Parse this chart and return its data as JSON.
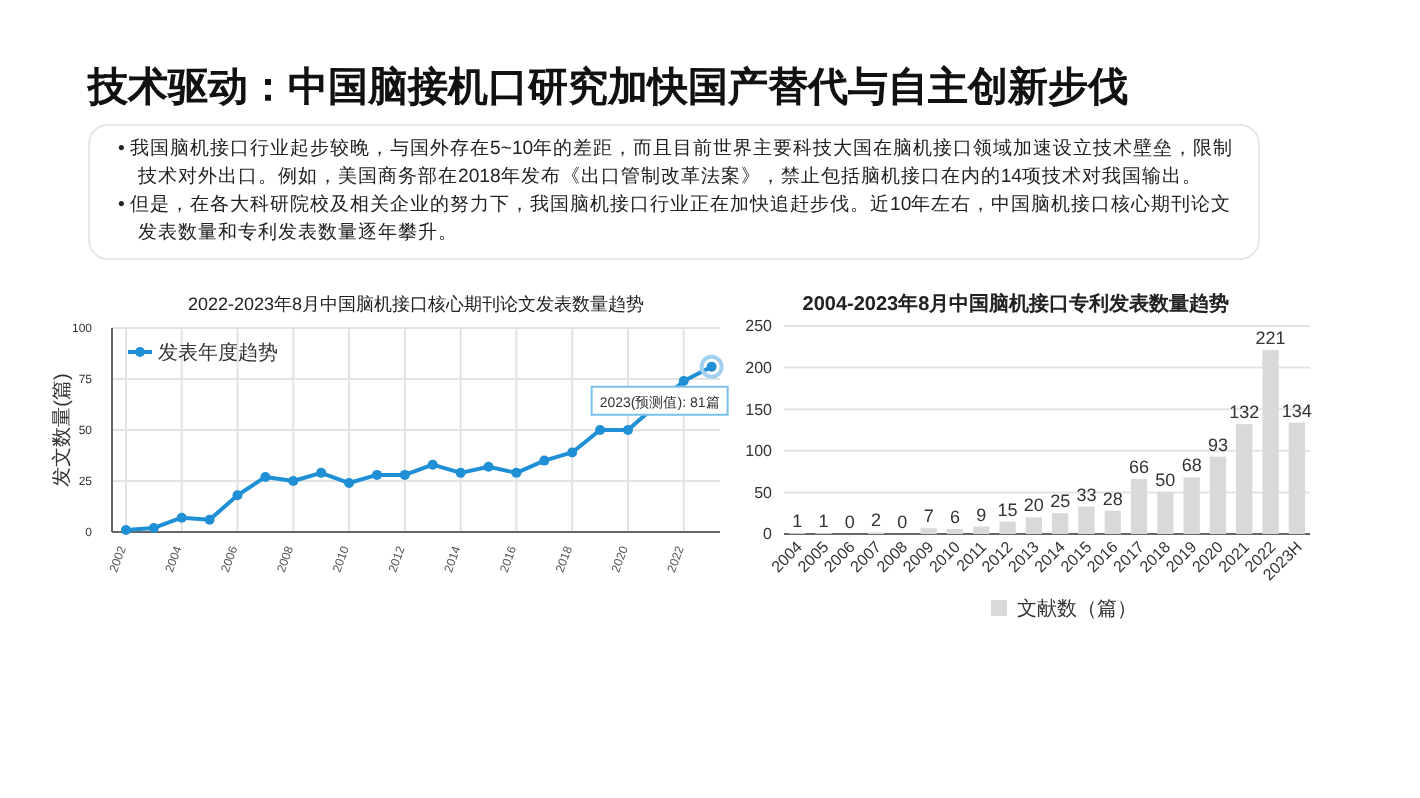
{
  "chart_data": [
    {
      "type": "other",
      "title": "技术驱动：中国脑接机口研究加快国产替代与自主创新步伐",
      "annotations": [
        "• 我国脑机接口行业起步较晚，与国外存在5~10年的差距，而且目前世界主要科技大国在脑机接口领域加速设立技术壁垒，限制技术对外出口。例如，美国商务部在2018年发布《出口管制改革法案》，禁止包括脑机接口在内的14项技术对我国输出。",
        "• 但是，在各大科研院校及相关企业的努力下，我国脑机接口行业正在加快追赶步伐。近10年左右，中国脑机接口核心期刊论文发表数量和专利发表数量逐年攀升。"
      ]
    },
    {
      "type": "line",
      "title": "2022-2023年8月中国脑机接口核心期刊论文发表数量趋势",
      "ylabel": "发文数量(篇)",
      "x": [
        2002,
        2003,
        2004,
        2005,
        2006,
        2007,
        2008,
        2009,
        2010,
        2011,
        2012,
        2013,
        2014,
        2015,
        2016,
        2017,
        2018,
        2019,
        2020,
        2022,
        2023
      ],
      "xlim": [
        2001.5,
        2023.3
      ],
      "xticks": [
        2002,
        2004,
        2006,
        2008,
        2010,
        2012,
        2014,
        2016,
        2018,
        2020,
        2022
      ],
      "ylim": [
        0,
        100
      ],
      "yticks": [
        0,
        25,
        50,
        75,
        100
      ],
      "grid": true,
      "legend": "top left",
      "marker": "circle",
      "series": [
        {
          "name": "发表年度趋势",
          "color": "#1f8fd6",
          "values": [
            1,
            2,
            7,
            6,
            18,
            27,
            25,
            29,
            24,
            28,
            28,
            33,
            29,
            32,
            29,
            35,
            39,
            50,
            50,
            74,
            81
          ]
        }
      ],
      "annotations": [
        {
          "text": "2023(预测值): 81篇",
          "x": 2023,
          "y": 81
        }
      ]
    },
    {
      "type": "bar",
      "title": "2004-2023年8月中国脑机接口专利发表数量趋势",
      "categories": [
        "2004",
        "2005",
        "2006",
        "2007",
        "2008",
        "2009",
        "2010",
        "2011",
        "2012",
        "2013",
        "2014",
        "2015",
        "2016",
        "2017",
        "2018",
        "2019",
        "2020",
        "2021",
        "2022",
        "2023H"
      ],
      "ylim": [
        0,
        250
      ],
      "yticks": [
        0,
        50,
        100,
        150,
        200,
        250
      ],
      "grid": "y",
      "legend": "bottom",
      "data_labels": true,
      "series": [
        {
          "name": "文献数（篇）",
          "color": "#d9d9d9",
          "values": [
            1,
            1,
            0,
            2,
            0,
            7,
            6,
            9,
            15,
            20,
            25,
            33,
            28,
            66,
            50,
            68,
            93,
            132,
            221,
            134
          ]
        }
      ]
    }
  ]
}
